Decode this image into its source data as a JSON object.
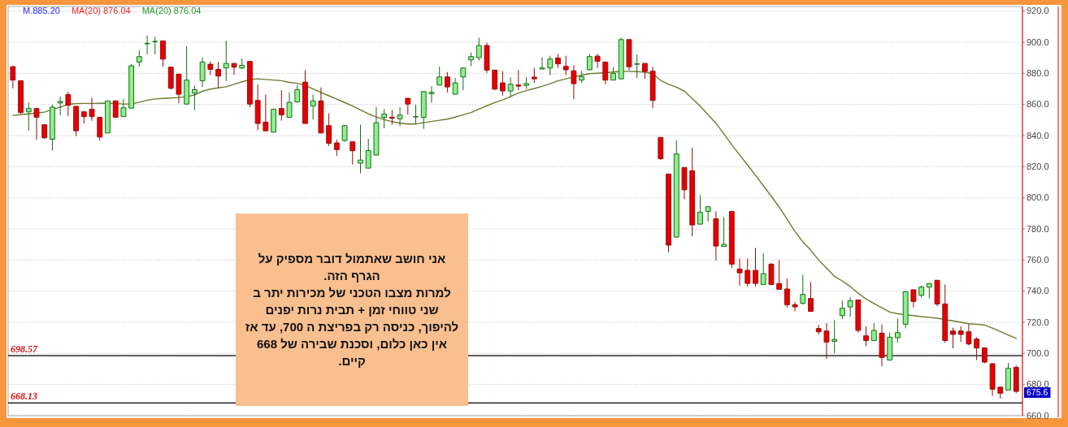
{
  "chart_data": {
    "type": "candlestick",
    "categories": [
      null,
      null,
      null,
      null,
      null,
      null,
      null,
      null,
      null,
      null,
      null,
      null,
      null,
      null,
      null,
      null,
      null,
      null,
      null,
      null,
      null,
      null,
      null,
      null,
      null,
      null,
      null,
      null,
      null,
      null,
      null,
      null,
      null,
      null,
      null,
      null,
      null,
      null,
      null,
      null,
      null,
      null,
      null,
      null,
      null,
      null,
      null,
      null,
      null,
      null,
      null,
      null,
      null,
      null,
      null,
      null,
      null,
      null,
      null,
      null,
      null,
      null,
      null,
      null,
      null,
      null,
      null,
      null,
      null,
      null,
      null,
      null,
      null,
      null,
      null,
      null,
      null,
      null,
      null,
      null,
      null,
      null,
      null,
      null,
      null,
      null,
      null,
      null,
      null,
      null,
      null,
      null,
      null,
      null,
      null,
      null,
      null,
      null,
      null,
      null,
      null,
      null,
      null,
      null,
      null,
      null,
      null,
      null,
      null,
      null,
      null,
      null,
      null,
      null,
      null,
      null,
      null,
      null,
      null,
      null,
      null,
      null,
      null,
      null,
      null,
      null,
      null,
      null
    ],
    "series": [
      {
        "type": "line",
        "color": "#6e7a2e",
        "values": [
          853,
          853.5,
          854,
          854.4,
          855.1,
          856.8,
          858.4,
          860.1,
          860.6,
          860.7,
          860.7,
          860.8,
          860.9,
          860.6,
          860.3,
          860.3,
          861.5,
          862.8,
          863.6,
          863.9,
          864.2,
          864.5,
          865,
          866.1,
          868.6,
          869.9,
          870.7,
          871.4,
          873,
          874.6,
          876,
          876.5,
          876.1,
          875.7,
          875.3,
          874.2,
          873.6,
          872.3,
          870,
          867.8,
          865.6,
          863.4,
          861.3,
          859,
          856.5,
          854,
          852,
          850.3,
          849,
          848,
          847.5,
          847.5,
          848.3,
          849.1,
          849.9,
          850.6,
          851.9,
          853.4,
          854.8,
          857,
          859.2,
          861.2,
          862.9,
          865.2,
          867.4,
          868.9,
          870.3,
          871.7,
          873.4,
          875.2,
          876.5,
          877.7,
          878.9,
          879.8,
          880.1,
          880.5,
          880.9,
          881.3,
          881.3,
          881.1,
          880.8,
          879.8,
          875.5,
          873,
          871.1,
          868.6,
          863.8,
          858.9,
          853.5,
          847.9,
          841.1,
          834.1,
          827.6,
          821.1,
          814.5,
          807.8,
          801,
          794.1,
          786.4,
          778.4,
          771.7,
          766.4,
          760,
          754.8,
          749.6,
          746.5,
          743,
          738.7,
          734.9,
          732.1,
          729.4,
          726.6,
          725.5,
          724.8,
          724.3,
          723.7,
          723.2,
          722.6,
          721.7,
          720.9,
          720,
          719.1,
          718.7,
          718.3,
          716.3,
          714.1,
          711.8,
          709.6
        ]
      },
      {
        "ohlc": [
          [
            884.3,
            885,
            870.4,
            875.7
          ],
          [
            875.3,
            875.5,
            854,
            854.8
          ],
          [
            855.3,
            861.2,
            843.1,
            857.4
          ],
          [
            857.4,
            857.6,
            837.4,
            851.8
          ],
          [
            847,
            847.2,
            838,
            838.6
          ],
          [
            837.7,
            860,
            830.4,
            858.3
          ],
          [
            861,
            865.2,
            853,
            862
          ],
          [
            866.4,
            868.2,
            852.5,
            859.5
          ],
          [
            858.8,
            859,
            839.7,
            843.1
          ],
          [
            855.3,
            855.5,
            847.8,
            852.2
          ],
          [
            856.9,
            864.3,
            849.6,
            852.2
          ],
          [
            851.8,
            852,
            836.9,
            839.1
          ],
          [
            841.7,
            862.5,
            841.5,
            862.3
          ],
          [
            862.3,
            862.5,
            851.5,
            851.8
          ],
          [
            852.2,
            863.5,
            852,
            857.9
          ],
          [
            857.7,
            886,
            857.5,
            884.9
          ],
          [
            887.3,
            894.8,
            884.3,
            890.8
          ],
          [
            899,
            904.3,
            892.2,
            899.3
          ],
          [
            900.3,
            903.5,
            892.2,
            900.6
          ],
          [
            900.9,
            901,
            884.3,
            889.2
          ],
          [
            884,
            884.3,
            869.6,
            870.4
          ],
          [
            879.5,
            879.7,
            860.9,
            866.6
          ],
          [
            860.3,
            897.4,
            860,
            875.7
          ],
          [
            867.3,
            872.2,
            856.5,
            869.6
          ],
          [
            875.3,
            890.1,
            871.3,
            887.3
          ],
          [
            885.9,
            887.7,
            879.1,
            882.6
          ],
          [
            882.6,
            887.3,
            870.9,
            878.3
          ],
          [
            883.5,
            900.9,
            875.1,
            886.4
          ],
          [
            886.4,
            886.6,
            879.1,
            884
          ],
          [
            883.5,
            889.6,
            882.6,
            885.2
          ],
          [
            887.7,
            888,
            858.3,
            860.3
          ],
          [
            862.6,
            873,
            843.5,
            847.8
          ],
          [
            848.7,
            866.4,
            842.6,
            843.1
          ],
          [
            842.3,
            857.2,
            842,
            857
          ],
          [
            857.4,
            869.2,
            849.6,
            853.4
          ],
          [
            851.7,
            867.8,
            851.5,
            861.4
          ],
          [
            861.7,
            872.7,
            861.2,
            869.6
          ],
          [
            874.4,
            882.1,
            847.6,
            847.8
          ],
          [
            859.1,
            866.4,
            850.4,
            862.3
          ],
          [
            862.3,
            871,
            841.5,
            841.7
          ],
          [
            846.4,
            854.3,
            833.4,
            835.1
          ],
          [
            835.3,
            837.4,
            827,
            831
          ],
          [
            836.9,
            846.6,
            836,
            846.4
          ],
          [
            836,
            836.2,
            821.4,
            830.3
          ],
          [
            822.3,
            847,
            815.7,
            824.3
          ],
          [
            819.1,
            837.9,
            819,
            830.4
          ],
          [
            827.5,
            858.3,
            827.3,
            848.3
          ],
          [
            851.7,
            857,
            844.7,
            853.9
          ],
          [
            851.8,
            856.5,
            847,
            851.2
          ],
          [
            850.8,
            858.3,
            846.1,
            853.2
          ],
          [
            864,
            864.2,
            853.6,
            860.3
          ],
          [
            852,
            860,
            847.3,
            852.2
          ],
          [
            851.7,
            868.5,
            844.3,
            868.3
          ],
          [
            867,
            871.7,
            861.2,
            867.8
          ],
          [
            872.5,
            884.3,
            872.3,
            877.7
          ],
          [
            877.7,
            880.9,
            867.8,
            871.3
          ],
          [
            866.6,
            877,
            866.4,
            873.9
          ],
          [
            877.7,
            883.8,
            869.2,
            883.5
          ],
          [
            888.7,
            893.4,
            884.7,
            890.8
          ],
          [
            890.1,
            903,
            888.3,
            897.9
          ],
          [
            897.9,
            899.7,
            880.3,
            882.1
          ],
          [
            882.1,
            882.3,
            869.2,
            869.9
          ],
          [
            873.9,
            881.4,
            865.7,
            868.7
          ],
          [
            868.7,
            877.4,
            864.9,
            873
          ],
          [
            872.5,
            882.1,
            869.2,
            871.8
          ],
          [
            872.3,
            877.7,
            870,
            873.4
          ],
          [
            877.6,
            883.5,
            873.9,
            876.5
          ],
          [
            882.8,
            890.4,
            882.8,
            883.5
          ],
          [
            883.5,
            891.3,
            878.8,
            889.2
          ],
          [
            889.9,
            892.5,
            883.5,
            886.1
          ],
          [
            884.5,
            891.3,
            878.8,
            882.3
          ],
          [
            881.7,
            885.2,
            863.5,
            873.4
          ],
          [
            875.7,
            881.7,
            873.9,
            877.9
          ],
          [
            882.3,
            892.5,
            882.1,
            890.8
          ],
          [
            891.1,
            892.5,
            883.5,
            887.8
          ],
          [
            887.3,
            887.5,
            873,
            875.7
          ],
          [
            875.7,
            884,
            875.5,
            880
          ],
          [
            876.5,
            903,
            876.3,
            901.7
          ],
          [
            901.7,
            901.9,
            882.1,
            884.3
          ],
          [
            885.9,
            892.2,
            877,
            886.1
          ],
          [
            886.4,
            886.6,
            876.5,
            881.2
          ],
          [
            881.4,
            884.3,
            857.7,
            862.6
          ],
          [
            838.8,
            839,
            824.3,
            825.2
          ],
          [
            815.3,
            815.5,
            764.9,
            769.6
          ],
          [
            774.8,
            837,
            774.6,
            828.2
          ],
          [
            819.5,
            819.7,
            799.1,
            805.2
          ],
          [
            817.4,
            832.2,
            775.3,
            782.6
          ],
          [
            783.1,
            801.7,
            782.9,
            790.8
          ],
          [
            791.3,
            794.5,
            784.7,
            794.3
          ],
          [
            786.6,
            791.3,
            759.7,
            769
          ],
          [
            768.7,
            787.5,
            768.5,
            770.1
          ],
          [
            791.3,
            791.5,
            754.8,
            757.4
          ],
          [
            754.3,
            760.9,
            743.5,
            751.8
          ],
          [
            753.4,
            760.9,
            743,
            745
          ],
          [
            753.4,
            767.8,
            743,
            745
          ],
          [
            744.3,
            764.3,
            744,
            751.3
          ],
          [
            757.4,
            758,
            744,
            744.3
          ],
          [
            744.9,
            760,
            741,
            741.2
          ],
          [
            741.4,
            748.2,
            729.6,
            731.3
          ],
          [
            731.3,
            733,
            727,
            729.9
          ],
          [
            732.2,
            750.4,
            731.3,
            737.9
          ],
          [
            735.3,
            745.9,
            727,
            727
          ],
          [
            716,
            718.3,
            712.2,
            713.9
          ],
          [
            714.4,
            719.5,
            696.5,
            707.3
          ],
          [
            707.8,
            721.4,
            700,
            709
          ],
          [
            724.3,
            733.9,
            722.1,
            729
          ],
          [
            729.9,
            736,
            723.5,
            733.9
          ],
          [
            734.3,
            734.5,
            713.4,
            714.8
          ],
          [
            711.3,
            717.4,
            704.7,
            708.3
          ],
          [
            708.2,
            719.5,
            708,
            714.8
          ],
          [
            713,
            718.6,
            691.8,
            697.4
          ],
          [
            695.7,
            713.4,
            695.5,
            710.4
          ],
          [
            710.1,
            722.3,
            707,
            713.4
          ],
          [
            718.8,
            740,
            716.2,
            739.7
          ],
          [
            740.9,
            741,
            729.6,
            733.4
          ],
          [
            737.4,
            743.5,
            736,
            742.6
          ],
          [
            742.6,
            745.2,
            735.3,
            744.9
          ],
          [
            747,
            747.2,
            730.4,
            731.8
          ],
          [
            731.8,
            744.3,
            706.9,
            708.3
          ],
          [
            714.4,
            716.5,
            703.3,
            712.2
          ],
          [
            714.4,
            717.4,
            707.5,
            712.2
          ],
          [
            713.9,
            719,
            705.2,
            706.1
          ],
          [
            709.2,
            710.4,
            695.7,
            703.5
          ],
          [
            703.5,
            703.7,
            693.6,
            694.4
          ],
          [
            693.4,
            693.6,
            672.6,
            677
          ],
          [
            678.3,
            678.6,
            671,
            674.4
          ],
          [
            676.5,
            693.9,
            676.3,
            690.4
          ],
          [
            691,
            692.2,
            674.4,
            675.6
          ]
        ]
      }
    ],
    "ylim": [
      660,
      923
    ],
    "yticks": [
      {
        "value": 660,
        "label": "660.0"
      },
      {
        "value": 680,
        "label": "680.0"
      },
      {
        "value": 700,
        "label": "700.0"
      },
      {
        "value": 720,
        "label": "720.0"
      },
      {
        "value": 740,
        "label": "740.0"
      },
      {
        "value": 760,
        "label": "760.0"
      },
      {
        "value": 780,
        "label": "780.0"
      },
      {
        "value": 800,
        "label": "800.0"
      },
      {
        "value": 820,
        "label": "820.0"
      },
      {
        "value": 840,
        "label": "840.0"
      },
      {
        "value": 860,
        "label": "860.0"
      },
      {
        "value": 880,
        "label": "880.0"
      },
      {
        "value": 900,
        "label": "900.0"
      },
      {
        "value": 920,
        "label": "920.0"
      }
    ],
    "grid": "y",
    "ref_lines": [
      {
        "axis": "y",
        "value": 698.57,
        "label": "698.57",
        "color": "#000000"
      },
      {
        "axis": "y",
        "value": 668.13,
        "label": "668.13",
        "color": "#000000"
      }
    ],
    "annotations": [
      "M.885.20",
      "MA(20)  876.04",
      "MA(20)  876.04",
      "אני חושב שאתמול דובר מספיק על הגרף הזה.",
      "למרות מצבו הטכני של מכירות יתר ב שני טווחי זמן + תבית נרות יפנים להיפוך, כניסה רק בפריצת ה 700, עד אז אין כאן כלום, וסכנת שבירה של 668 קיים.",
      {
        "text": "675.6",
        "y": 675.6
      }
    ]
  }
}
